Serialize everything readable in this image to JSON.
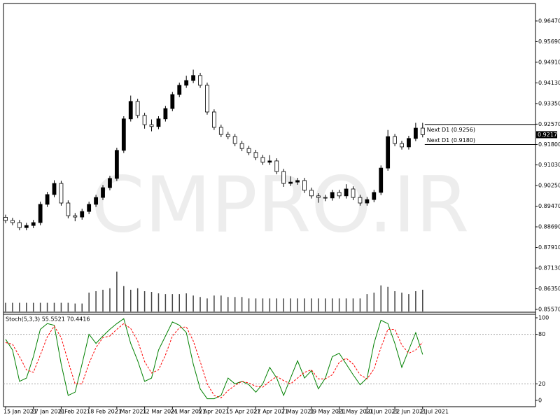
{
  "chart_data": [
    {
      "type": "candlestick",
      "categories": [
        "15 Jan 2021",
        null,
        null,
        null,
        "27 Jan 2021",
        null,
        null,
        null,
        "8 Feb 2021",
        null,
        null,
        null,
        "18 Feb 2021",
        null,
        null,
        null,
        "2 Mar 2021",
        null,
        null,
        null,
        "12 Mar 2021",
        null,
        null,
        null,
        "24 Mar 2021",
        null,
        null,
        null,
        "5 Apr 2021",
        null,
        null,
        null,
        "15 Apr 2021",
        null,
        null,
        null,
        "27 Apr 2021",
        null,
        null,
        null,
        "7 May 2021",
        null,
        null,
        null,
        "19 May 2021",
        null,
        null,
        null,
        "31 May 2021",
        null,
        null,
        null,
        "10 Jun 2021",
        null,
        null,
        null,
        "22 Jun 2021",
        null,
        null,
        null,
        "2 Jul 2021"
      ],
      "open": [
        0.8905,
        0.8893,
        0.8885,
        0.8866,
        0.8874,
        0.8885,
        0.8954,
        0.8991,
        0.9033,
        0.8959,
        0.8911,
        0.8906,
        0.8927,
        0.8954,
        0.898,
        0.9017,
        0.9052,
        0.9158,
        0.9277,
        0.9343,
        0.929,
        0.9255,
        0.9248,
        0.9277,
        0.9316,
        0.9369,
        0.9404,
        0.9422,
        0.9441,
        0.9404,
        0.9303,
        0.9245,
        0.9218,
        0.921,
        0.9184,
        0.9165,
        0.915,
        0.9131,
        0.9113,
        0.9118,
        0.9078,
        0.9033,
        0.9038,
        0.9044,
        0.9007,
        0.8986,
        0.898,
        0.8978,
        0.8999,
        0.8986,
        0.9012,
        0.898,
        0.8959,
        0.8972,
        0.8999,
        0.9091,
        0.921,
        0.9184,
        0.9171,
        0.9203,
        0.9242
      ],
      "high": [
        0.8915,
        0.8903,
        0.8895,
        0.8884,
        0.8895,
        0.8964,
        0.9001,
        0.9045,
        0.9043,
        0.8969,
        0.8921,
        0.8937,
        0.8964,
        0.899,
        0.9027,
        0.9062,
        0.9168,
        0.9287,
        0.9365,
        0.9353,
        0.93,
        0.9275,
        0.9287,
        0.9326,
        0.9379,
        0.9414,
        0.944,
        0.9463,
        0.9451,
        0.9414,
        0.9313,
        0.9255,
        0.9228,
        0.922,
        0.9194,
        0.9175,
        0.916,
        0.9141,
        0.914,
        0.9128,
        0.9088,
        0.906,
        0.9054,
        0.9054,
        0.9017,
        0.8996,
        0.899,
        0.9009,
        0.9009,
        0.903,
        0.9022,
        0.899,
        0.8982,
        0.9009,
        0.9101,
        0.9235,
        0.922,
        0.9194,
        0.9213,
        0.9262,
        0.9262
      ],
      "low": [
        0.8883,
        0.8875,
        0.8856,
        0.8856,
        0.8864,
        0.8875,
        0.8944,
        0.8981,
        0.8949,
        0.8901,
        0.889,
        0.8896,
        0.8917,
        0.8944,
        0.897,
        0.9007,
        0.9042,
        0.9148,
        0.9267,
        0.928,
        0.924,
        0.923,
        0.9238,
        0.9267,
        0.9306,
        0.9359,
        0.9394,
        0.9412,
        0.9394,
        0.9293,
        0.9235,
        0.9208,
        0.92,
        0.9174,
        0.9155,
        0.914,
        0.9121,
        0.9103,
        0.9103,
        0.9068,
        0.902,
        0.9023,
        0.9028,
        0.8997,
        0.8976,
        0.896,
        0.8966,
        0.8968,
        0.8976,
        0.8976,
        0.897,
        0.8949,
        0.8949,
        0.8962,
        0.8989,
        0.9081,
        0.9174,
        0.9161,
        0.9161,
        0.9193,
        0.9207
      ],
      "close": [
        0.8893,
        0.8885,
        0.8866,
        0.8874,
        0.8885,
        0.8954,
        0.8991,
        0.9033,
        0.8959,
        0.8911,
        0.8906,
        0.8927,
        0.8954,
        0.898,
        0.9017,
        0.9052,
        0.9158,
        0.9277,
        0.9343,
        0.929,
        0.9255,
        0.9248,
        0.9277,
        0.9316,
        0.9369,
        0.9404,
        0.9422,
        0.9441,
        0.9404,
        0.9303,
        0.9245,
        0.9218,
        0.921,
        0.9184,
        0.9165,
        0.915,
        0.9131,
        0.9113,
        0.9118,
        0.9078,
        0.9033,
        0.9038,
        0.9044,
        0.9007,
        0.8986,
        0.898,
        0.8978,
        0.8999,
        0.8986,
        0.9012,
        0.898,
        0.8959,
        0.8972,
        0.8999,
        0.9091,
        0.921,
        0.9184,
        0.9171,
        0.9203,
        0.9242,
        0.92172
      ],
      "volumes": [
        12,
        12,
        12,
        12,
        12,
        12,
        12,
        12,
        12,
        12,
        11,
        11,
        26,
        28,
        30,
        32,
        55,
        35,
        30,
        32,
        28,
        27,
        25,
        24,
        24,
        24,
        25,
        22,
        20,
        18,
        22,
        22,
        20,
        20,
        20,
        18,
        18,
        18,
        18,
        18,
        18,
        18,
        18,
        18,
        18,
        18,
        18,
        18,
        18,
        18,
        18,
        18,
        24,
        26,
        36,
        34,
        28,
        26,
        24,
        28,
        30
      ],
      "up_color": "#000000",
      "down_color": "#ffffff",
      "ylim": [
        0.8549,
        0.9713
      ],
      "yticks": [
        {
          "value": 0.9647,
          "label": "0.96470"
        },
        {
          "value": 0.9569,
          "label": "0.95690"
        },
        {
          "value": 0.9491,
          "label": "0.94910"
        },
        {
          "value": 0.9413,
          "label": "0.94130"
        },
        {
          "value": 0.9335,
          "label": "0.93350"
        },
        {
          "value": 0.9257,
          "label": "0.92570"
        },
        {
          "value": 0.918,
          "label": "0.91800"
        },
        {
          "value": 0.9103,
          "label": "0.91030"
        },
        {
          "value": 0.9025,
          "label": "0.90250"
        },
        {
          "value": 0.8947,
          "label": "0.89470"
        },
        {
          "value": 0.8869,
          "label": "0.88690"
        },
        {
          "value": 0.8791,
          "label": "0.87910"
        },
        {
          "value": 0.8713,
          "label": "0.87130"
        },
        {
          "value": 0.8635,
          "label": "0.86350"
        },
        {
          "value": 0.8557,
          "label": "0.85570"
        }
      ],
      "last_price": 0.92172,
      "annotations": [
        {
          "value": 0.9256,
          "label": "Next D1 (0.9256)"
        },
        {
          "value": 0.918,
          "label": "Next D1 (0.9180)"
        }
      ],
      "watermark": "CMPRO.IR"
    },
    {
      "type": "line",
      "title": "Stoch(5,3,3) 55.5521 70.4416",
      "series": [
        {
          "color": "#008000",
          "dashed": false,
          "values": [
            74,
            61,
            23,
            27,
            53,
            86,
            93,
            91,
            44,
            6,
            10,
            44,
            80,
            69,
            78,
            86,
            93,
            99,
            69,
            48,
            23,
            27,
            61,
            78,
            95,
            91,
            82,
            44,
            14,
            2,
            2,
            6,
            27,
            20,
            23,
            19,
            10,
            20,
            40,
            27,
            6,
            27,
            48,
            27,
            36,
            14,
            27,
            53,
            57,
            44,
            31,
            19,
            27,
            69,
            97,
            93,
            69,
            40,
            61,
            82,
            55.5521
          ]
        },
        {
          "color": "#ff0000",
          "dashed": true,
          "values": [
            70,
            68,
            53,
            37,
            34,
            55,
            77,
            90,
            76,
            47,
            20,
            20,
            45,
            64,
            76,
            78,
            86,
            93,
            87,
            72,
            47,
            33,
            37,
            55,
            78,
            88,
            89,
            72,
            47,
            20,
            6,
            3,
            12,
            18,
            23,
            21,
            17,
            16,
            23,
            29,
            24,
            20,
            27,
            34,
            37,
            26,
            26,
            31,
            46,
            51,
            44,
            31,
            26,
            38,
            64,
            86,
            86,
            67,
            57,
            61,
            70.4416
          ]
        }
      ],
      "ylim": [
        -6.8,
        103.4
      ],
      "yticks": [
        0,
        20,
        80,
        100
      ],
      "levels": [
        20,
        80
      ]
    }
  ]
}
